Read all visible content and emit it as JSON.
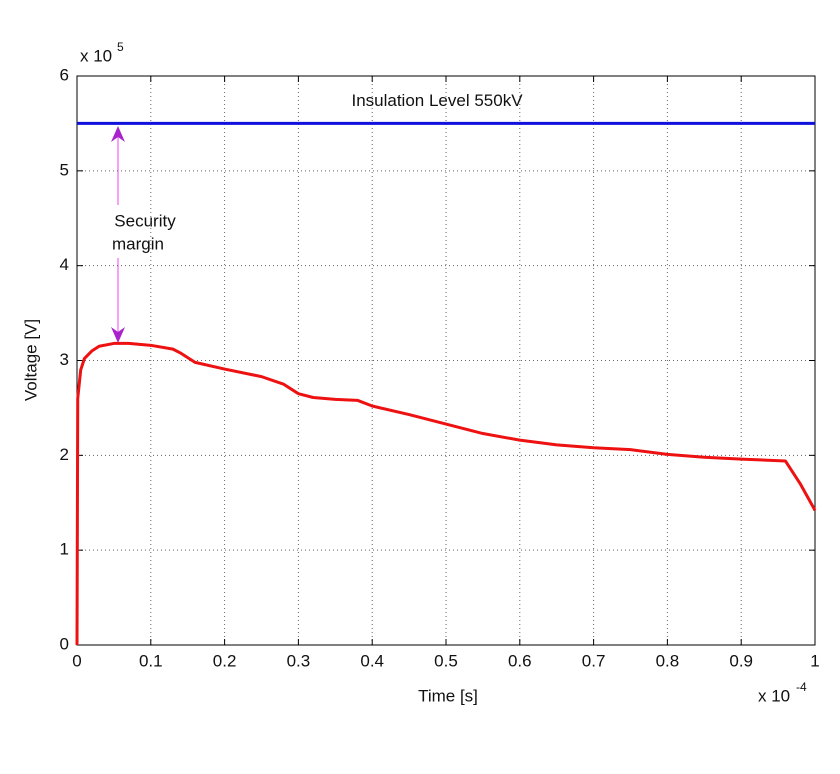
{
  "chart_data": {
    "type": "line",
    "x_label": "Time [s]",
    "y_label": "Voltage [V]",
    "x_multiplier": {
      "base": "x 10",
      "exponent": "-4"
    },
    "y_multiplier": {
      "base": "x 10",
      "exponent": "5"
    },
    "x": [
      0,
      0.001,
      0.005,
      0.01,
      0.02,
      0.03,
      0.05,
      0.07,
      0.1,
      0.13,
      0.14,
      0.16,
      0.2,
      0.25,
      0.28,
      0.3,
      0.32,
      0.35,
      0.38,
      0.4,
      0.45,
      0.5,
      0.55,
      0.6,
      0.65,
      0.7,
      0.75,
      0.8,
      0.85,
      0.9,
      0.96,
      0.98,
      1.0
    ],
    "values": [
      0,
      2.6,
      2.9,
      3.02,
      3.1,
      3.15,
      3.18,
      3.18,
      3.16,
      3.12,
      3.08,
      2.98,
      2.91,
      2.83,
      2.75,
      2.65,
      2.61,
      2.59,
      2.58,
      2.52,
      2.43,
      2.33,
      2.23,
      2.16,
      2.11,
      2.08,
      2.06,
      2.01,
      1.98,
      1.96,
      1.94,
      1.7,
      1.42
    ],
    "color": "#ee1111",
    "reference_line": {
      "value": 5.5,
      "color": "#1111dd",
      "label": "Insulation Level 550kV"
    },
    "annotation": [
      "Security",
      "margin"
    ],
    "xlim": [
      0,
      1
    ],
    "xticks": [
      0,
      0.1,
      0.2,
      0.3,
      0.4,
      0.5,
      0.6,
      0.7,
      0.8,
      0.9,
      1
    ],
    "ylim": [
      0,
      6
    ],
    "yticks": [
      0,
      1,
      2,
      3,
      4,
      5,
      6
    ],
    "grid": true
  }
}
